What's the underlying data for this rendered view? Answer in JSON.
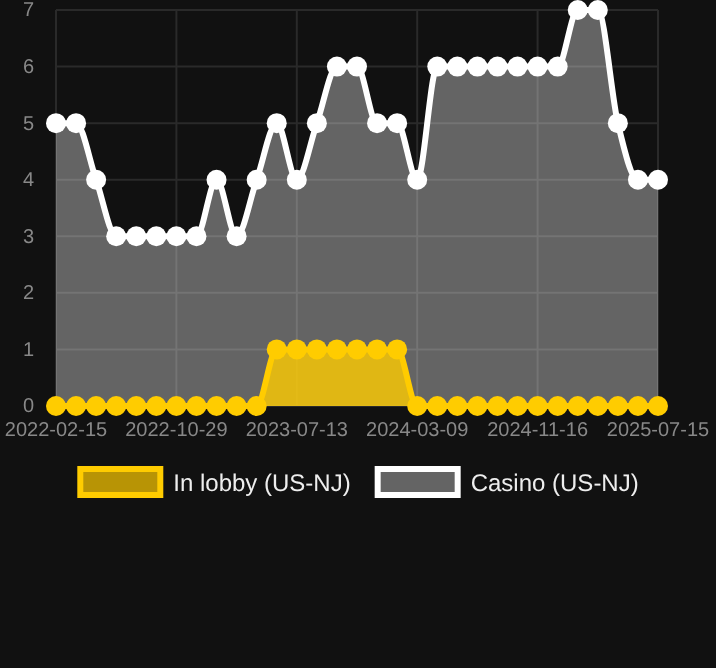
{
  "chart_data": {
    "type": "area",
    "categories": [
      "2022-02-15",
      null,
      null,
      null,
      null,
      null,
      "2022-10-29",
      null,
      null,
      null,
      null,
      null,
      "2023-07-13",
      null,
      null,
      null,
      null,
      null,
      "2024-03-09",
      null,
      null,
      null,
      null,
      null,
      "2024-11-16",
      null,
      null,
      null,
      null,
      null,
      "2025-07-15"
    ],
    "series": [
      {
        "name": "In lobby (US-NJ)",
        "color": "#ffcc00",
        "values": [
          0,
          0,
          0,
          0,
          0,
          0,
          0,
          0,
          0,
          0,
          0,
          1,
          1,
          1,
          1,
          1,
          1,
          1,
          0,
          0,
          0,
          0,
          0,
          0,
          0,
          0,
          0,
          0,
          0,
          0,
          0
        ]
      },
      {
        "name": "Casino (US-NJ)",
        "color": "#ffffff",
        "values": [
          5,
          5,
          4,
          3,
          3,
          3,
          3,
          3,
          4,
          3,
          4,
          5,
          4,
          5,
          6,
          6,
          5,
          5,
          4,
          6,
          6,
          6,
          6,
          6,
          6,
          6,
          7,
          7,
          5,
          4,
          4
        ]
      }
    ],
    "ylim": [
      0,
      7
    ],
    "yticks": [
      0,
      1,
      2,
      3,
      4,
      5,
      6,
      7
    ],
    "grid": true,
    "legend": "bottom",
    "marker": "circle",
    "line_style": "solid"
  }
}
